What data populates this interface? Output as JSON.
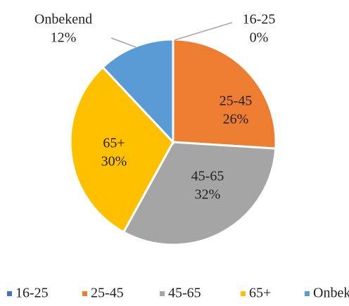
{
  "chart_data": {
    "type": "pie",
    "categories": [
      "16-25",
      "25-45",
      "45-65",
      "65+",
      "Onbekend"
    ],
    "values": [
      0,
      26,
      32,
      30,
      12
    ],
    "value_labels": [
      "0%",
      "26%",
      "32%",
      "30%",
      "12%"
    ],
    "colors": [
      "#4472c4",
      "#ed7d31",
      "#a5a5a5",
      "#ffc000",
      "#5b9bd5"
    ],
    "legend": "bottom"
  }
}
